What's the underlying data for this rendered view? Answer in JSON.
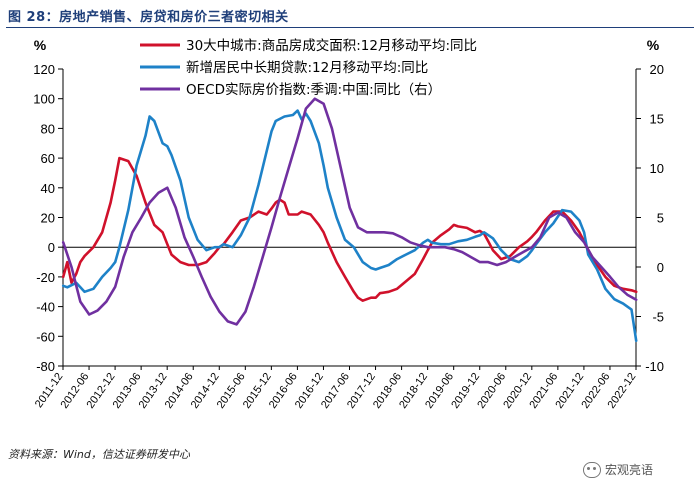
{
  "figure_title": "图 28：房地产销售、房贷和房价三者密切相关",
  "source_note": "资料来源：Wind，信达证券研发中心",
  "watermark": "宏观亮语",
  "chart_data": {
    "type": "line",
    "left_axis": {
      "unit": "%",
      "ylim": [
        -80,
        120
      ],
      "ticks": [
        -80,
        -60,
        -40,
        -20,
        0,
        20,
        40,
        60,
        80,
        100,
        120
      ]
    },
    "right_axis": {
      "unit": "%",
      "ylim": [
        -10,
        20
      ],
      "ticks": [
        -10,
        -5,
        0,
        5,
        10,
        15,
        20
      ]
    },
    "x_range": [
      2011.917,
      2022.917
    ],
    "x_tick_labels": [
      "2011-12",
      "2012-06",
      "2012-12",
      "2013-06",
      "2013-12",
      "2014-06",
      "2014-12",
      "2015-06",
      "2015-12",
      "2016-06",
      "2016-12",
      "2017-06",
      "2017-12",
      "2018-06",
      "2018-12",
      "2019-06",
      "2019-12",
      "2020-06",
      "2020-12",
      "2021-06",
      "2021-12",
      "2022-06",
      "2022-12"
    ],
    "series": [
      {
        "name": "30大中城市:商品房成交面积:12月移动平均:同比",
        "axis": "left",
        "color": "#d0112b",
        "points": [
          [
            2011.92,
            -20
          ],
          [
            2012.0,
            -10
          ],
          [
            2012.08,
            -24
          ],
          [
            2012.17,
            -18
          ],
          [
            2012.25,
            -10
          ],
          [
            2012.33,
            -6
          ],
          [
            2012.5,
            0
          ],
          [
            2012.67,
            10
          ],
          [
            2012.83,
            30
          ],
          [
            2012.92,
            45
          ],
          [
            2013.0,
            60
          ],
          [
            2013.17,
            58
          ],
          [
            2013.33,
            48
          ],
          [
            2013.5,
            30
          ],
          [
            2013.67,
            15
          ],
          [
            2013.83,
            10
          ],
          [
            2013.92,
            2
          ],
          [
            2014.0,
            -5
          ],
          [
            2014.17,
            -10
          ],
          [
            2014.33,
            -12
          ],
          [
            2014.5,
            -12
          ],
          [
            2014.67,
            -10
          ],
          [
            2014.83,
            -4
          ],
          [
            2014.92,
            0
          ],
          [
            2015.0,
            2
          ],
          [
            2015.17,
            10
          ],
          [
            2015.33,
            18
          ],
          [
            2015.5,
            20
          ],
          [
            2015.67,
            24
          ],
          [
            2015.83,
            22
          ],
          [
            2015.92,
            26
          ],
          [
            2016.0,
            30
          ],
          [
            2016.08,
            32
          ],
          [
            2016.17,
            30
          ],
          [
            2016.25,
            22
          ],
          [
            2016.42,
            22
          ],
          [
            2016.5,
            24
          ],
          [
            2016.67,
            22
          ],
          [
            2016.83,
            15
          ],
          [
            2016.92,
            10
          ],
          [
            2017.0,
            3
          ],
          [
            2017.17,
            -10
          ],
          [
            2017.33,
            -20
          ],
          [
            2017.5,
            -30
          ],
          [
            2017.58,
            -34
          ],
          [
            2017.67,
            -36
          ],
          [
            2017.83,
            -34
          ],
          [
            2017.92,
            -34
          ],
          [
            2018.0,
            -31
          ],
          [
            2018.17,
            -30
          ],
          [
            2018.33,
            -28
          ],
          [
            2018.5,
            -23
          ],
          [
            2018.67,
            -18
          ],
          [
            2018.83,
            -8
          ],
          [
            2018.92,
            -2
          ],
          [
            2019.0,
            3
          ],
          [
            2019.17,
            8
          ],
          [
            2019.33,
            12
          ],
          [
            2019.42,
            15
          ],
          [
            2019.5,
            14
          ],
          [
            2019.67,
            13
          ],
          [
            2019.83,
            10
          ],
          [
            2019.92,
            11
          ],
          [
            2020.0,
            9
          ],
          [
            2020.08,
            4
          ],
          [
            2020.17,
            -2
          ],
          [
            2020.33,
            -8
          ],
          [
            2020.5,
            -6
          ],
          [
            2020.67,
            0
          ],
          [
            2020.83,
            4
          ],
          [
            2020.92,
            7
          ],
          [
            2021.0,
            10
          ],
          [
            2021.17,
            18
          ],
          [
            2021.33,
            24
          ],
          [
            2021.5,
            24
          ],
          [
            2021.67,
            18
          ],
          [
            2021.83,
            10
          ],
          [
            2021.92,
            4
          ],
          [
            2022.0,
            -2
          ],
          [
            2022.17,
            -12
          ],
          [
            2022.33,
            -20
          ],
          [
            2022.5,
            -26
          ],
          [
            2022.67,
            -28
          ],
          [
            2022.83,
            -29
          ],
          [
            2022.92,
            -30
          ]
        ]
      },
      {
        "name": "新增居民中长期贷款:12月移动平均:同比",
        "axis": "left",
        "color": "#1e82c8",
        "points": [
          [
            2011.92,
            -26
          ],
          [
            2012.0,
            -27
          ],
          [
            2012.17,
            -24
          ],
          [
            2012.33,
            -30
          ],
          [
            2012.5,
            -28
          ],
          [
            2012.67,
            -20
          ],
          [
            2012.83,
            -14
          ],
          [
            2012.92,
            -10
          ],
          [
            2013.0,
            0
          ],
          [
            2013.17,
            25
          ],
          [
            2013.33,
            55
          ],
          [
            2013.5,
            75
          ],
          [
            2013.58,
            88
          ],
          [
            2013.67,
            85
          ],
          [
            2013.83,
            70
          ],
          [
            2013.92,
            68
          ],
          [
            2014.0,
            62
          ],
          [
            2014.17,
            45
          ],
          [
            2014.33,
            20
          ],
          [
            2014.5,
            5
          ],
          [
            2014.67,
            -2
          ],
          [
            2014.83,
            0
          ],
          [
            2014.92,
            0
          ],
          [
            2015.0,
            2
          ],
          [
            2015.17,
            0
          ],
          [
            2015.33,
            8
          ],
          [
            2015.5,
            20
          ],
          [
            2015.67,
            42
          ],
          [
            2015.83,
            65
          ],
          [
            2015.92,
            78
          ],
          [
            2016.0,
            85
          ],
          [
            2016.17,
            88
          ],
          [
            2016.33,
            89
          ],
          [
            2016.42,
            92
          ],
          [
            2016.5,
            86
          ],
          [
            2016.58,
            90
          ],
          [
            2016.67,
            85
          ],
          [
            2016.83,
            70
          ],
          [
            2016.92,
            55
          ],
          [
            2017.0,
            40
          ],
          [
            2017.17,
            20
          ],
          [
            2017.33,
            5
          ],
          [
            2017.5,
            0
          ],
          [
            2017.67,
            -10
          ],
          [
            2017.83,
            -14
          ],
          [
            2017.92,
            -15
          ],
          [
            2018.0,
            -14
          ],
          [
            2018.17,
            -12
          ],
          [
            2018.33,
            -8
          ],
          [
            2018.5,
            -5
          ],
          [
            2018.67,
            -2
          ],
          [
            2018.83,
            3
          ],
          [
            2018.92,
            5
          ],
          [
            2019.0,
            3
          ],
          [
            2019.17,
            2
          ],
          [
            2019.33,
            2
          ],
          [
            2019.5,
            4
          ],
          [
            2019.67,
            5
          ],
          [
            2019.83,
            7
          ],
          [
            2019.92,
            8
          ],
          [
            2020.0,
            10
          ],
          [
            2020.17,
            6
          ],
          [
            2020.33,
            -2
          ],
          [
            2020.5,
            -8
          ],
          [
            2020.67,
            -10
          ],
          [
            2020.83,
            -6
          ],
          [
            2020.92,
            -2
          ],
          [
            2021.0,
            2
          ],
          [
            2021.17,
            10
          ],
          [
            2021.33,
            16
          ],
          [
            2021.5,
            25
          ],
          [
            2021.67,
            24
          ],
          [
            2021.83,
            18
          ],
          [
            2021.92,
            10
          ],
          [
            2022.0,
            -5
          ],
          [
            2022.17,
            -15
          ],
          [
            2022.33,
            -28
          ],
          [
            2022.5,
            -35
          ],
          [
            2022.67,
            -38
          ],
          [
            2022.83,
            -42
          ],
          [
            2022.92,
            -63
          ]
        ]
      },
      {
        "name": "OECD实际房价指数:季调:中国:同比（右）",
        "axis": "right",
        "color": "#7030a0",
        "points": [
          [
            2011.92,
            2.5
          ],
          [
            2012.08,
            0
          ],
          [
            2012.25,
            -3.5
          ],
          [
            2012.42,
            -4.8
          ],
          [
            2012.58,
            -4.4
          ],
          [
            2012.75,
            -3.5
          ],
          [
            2012.92,
            -2
          ],
          [
            2013.08,
            1
          ],
          [
            2013.25,
            3.5
          ],
          [
            2013.42,
            5
          ],
          [
            2013.58,
            6.5
          ],
          [
            2013.75,
            7.5
          ],
          [
            2013.92,
            8
          ],
          [
            2014.08,
            6
          ],
          [
            2014.25,
            3
          ],
          [
            2014.42,
            1
          ],
          [
            2014.58,
            -1
          ],
          [
            2014.75,
            -3
          ],
          [
            2014.92,
            -4.5
          ],
          [
            2015.08,
            -5.5
          ],
          [
            2015.25,
            -5.8
          ],
          [
            2015.42,
            -4.5
          ],
          [
            2015.58,
            -2
          ],
          [
            2015.75,
            1
          ],
          [
            2015.92,
            4
          ],
          [
            2016.08,
            7
          ],
          [
            2016.25,
            10
          ],
          [
            2016.42,
            13
          ],
          [
            2016.58,
            16
          ],
          [
            2016.75,
            17
          ],
          [
            2016.92,
            16.5
          ],
          [
            2017.08,
            14
          ],
          [
            2017.25,
            10
          ],
          [
            2017.42,
            6
          ],
          [
            2017.58,
            4
          ],
          [
            2017.75,
            3.5
          ],
          [
            2017.92,
            3.5
          ],
          [
            2018.08,
            3.5
          ],
          [
            2018.25,
            3.4
          ],
          [
            2018.42,
            3
          ],
          [
            2018.58,
            2.5
          ],
          [
            2018.75,
            2.2
          ],
          [
            2018.92,
            2
          ],
          [
            2019.08,
            2
          ],
          [
            2019.25,
            2
          ],
          [
            2019.42,
            1.8
          ],
          [
            2019.58,
            1.5
          ],
          [
            2019.75,
            1
          ],
          [
            2019.92,
            0.5
          ],
          [
            2020.08,
            0.5
          ],
          [
            2020.25,
            0.2
          ],
          [
            2020.42,
            0.5
          ],
          [
            2020.58,
            1
          ],
          [
            2020.75,
            1.5
          ],
          [
            2020.92,
            2
          ],
          [
            2021.08,
            3
          ],
          [
            2021.25,
            5
          ],
          [
            2021.42,
            5.5
          ],
          [
            2021.58,
            5
          ],
          [
            2021.75,
            3.5
          ],
          [
            2021.92,
            2.5
          ],
          [
            2022.08,
            1
          ],
          [
            2022.25,
            0
          ],
          [
            2022.42,
            -1
          ],
          [
            2022.58,
            -2
          ],
          [
            2022.75,
            -2.8
          ],
          [
            2022.92,
            -3.3
          ]
        ]
      }
    ]
  }
}
